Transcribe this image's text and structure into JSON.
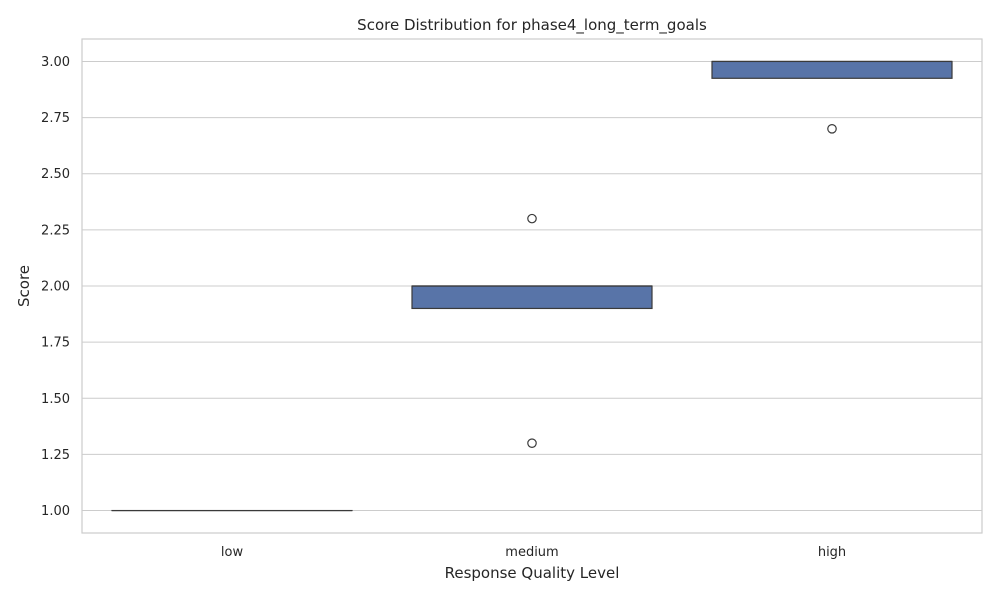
{
  "chart_data": {
    "type": "box",
    "title": "Score Distribution for phase4_long_term_goals",
    "xlabel": "Response Quality Level",
    "ylabel": "Score",
    "categories": [
      "low",
      "medium",
      "high"
    ],
    "ylim": [
      0.9,
      3.1
    ],
    "yticks": [
      1.0,
      1.25,
      1.5,
      1.75,
      2.0,
      2.25,
      2.5,
      2.75,
      3.0
    ],
    "ytick_labels": [
      "1.00",
      "1.25",
      "1.50",
      "1.75",
      "2.00",
      "2.25",
      "2.50",
      "2.75",
      "3.00"
    ],
    "grid": true,
    "box_color": "#5874a8",
    "boxes": [
      {
        "category": "low",
        "q1": 1.0,
        "median": 1.0,
        "q3": 1.0,
        "whisker_low": 1.0,
        "whisker_high": 1.0,
        "outliers": []
      },
      {
        "category": "medium",
        "q1": 1.9,
        "median": 2.0,
        "q3": 2.0,
        "whisker_low": 1.9,
        "whisker_high": 2.0,
        "outliers": [
          2.3,
          1.3
        ]
      },
      {
        "category": "high",
        "q1": 2.925,
        "median": 3.0,
        "q3": 3.0,
        "whisker_low": 2.925,
        "whisker_high": 3.0,
        "outliers": [
          2.7
        ]
      }
    ]
  }
}
